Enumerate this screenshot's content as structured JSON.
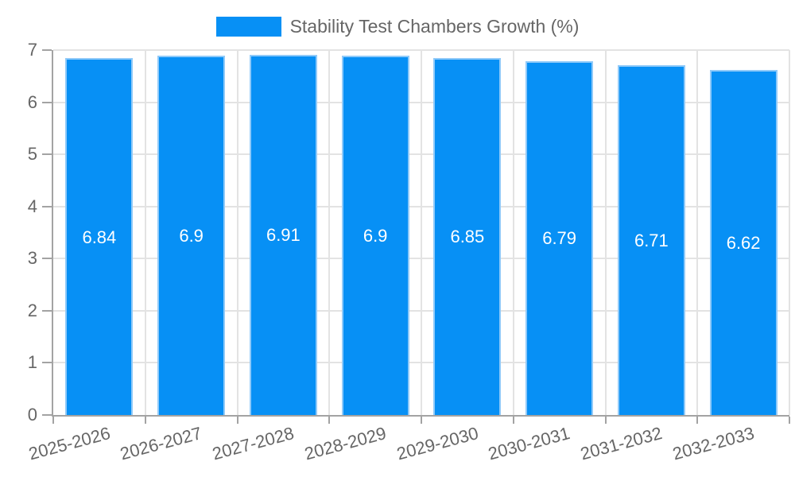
{
  "legend": {
    "label": "Stability Test Chambers Growth (%)"
  },
  "chart_data": {
    "type": "bar",
    "title": "Stability Test Chambers Growth (%)",
    "categories": [
      "2025-2026",
      "2026-2027",
      "2027-2028",
      "2028-2029",
      "2029-2030",
      "2030-2031",
      "2031-2032",
      "2032-2033"
    ],
    "values": [
      6.84,
      6.9,
      6.91,
      6.9,
      6.85,
      6.79,
      6.71,
      6.62
    ],
    "value_labels": [
      "6.84",
      "6.9",
      "6.91",
      "6.9",
      "6.85",
      "6.79",
      "6.71",
      "6.62"
    ],
    "xlabel": "",
    "ylabel": "",
    "ylim": [
      0,
      7
    ],
    "yticks": [
      0,
      1,
      2,
      3,
      4,
      5,
      6,
      7
    ],
    "grid": true,
    "legend_position": "top",
    "value_label_position": "center",
    "colors": {
      "bar_fill": "#0790F5",
      "bar_border": "#90CAF9",
      "grid": "#E3E3E3",
      "axis": "#A3A3A3",
      "tick_label": "#666666",
      "value_label": "#FFFFFF"
    }
  }
}
